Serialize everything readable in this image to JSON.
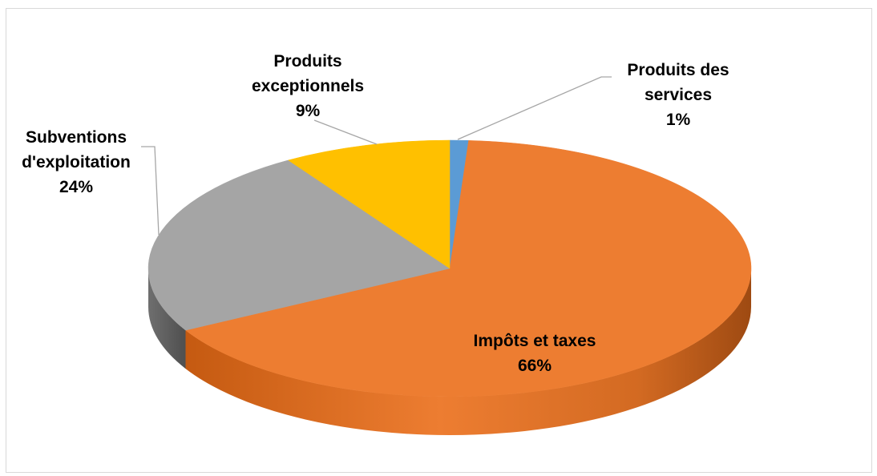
{
  "chart_data": {
    "type": "pie",
    "style": "3d",
    "slices": [
      {
        "label": "Produits des services",
        "value": 1,
        "percent_label": "1%",
        "color": "#5b9bd5"
      },
      {
        "label": "Impôts et taxes",
        "value": 66,
        "percent_label": "66%",
        "color": "#ed7d31"
      },
      {
        "label": "Subventions d'exploitation",
        "value": 24,
        "percent_label": "24%",
        "color": "#a5a5a5"
      },
      {
        "label": "Produits exceptionnels",
        "value": 9,
        "percent_label": "9%",
        "color": "#ffc000"
      }
    ],
    "label_lines": {
      "Produits des services": [
        "Produits des",
        "services",
        "1%"
      ],
      "Impôts et taxes": [
        "Impôts et taxes",
        "66%"
      ],
      "Subventions d'exploitation": [
        "Subventions",
        "d'exploitation",
        "24%"
      ],
      "Produits exceptionnels": [
        "Produits",
        "exceptionnels",
        "9%"
      ]
    },
    "legend": "none",
    "leader_line_color": "#a6a6a6"
  }
}
